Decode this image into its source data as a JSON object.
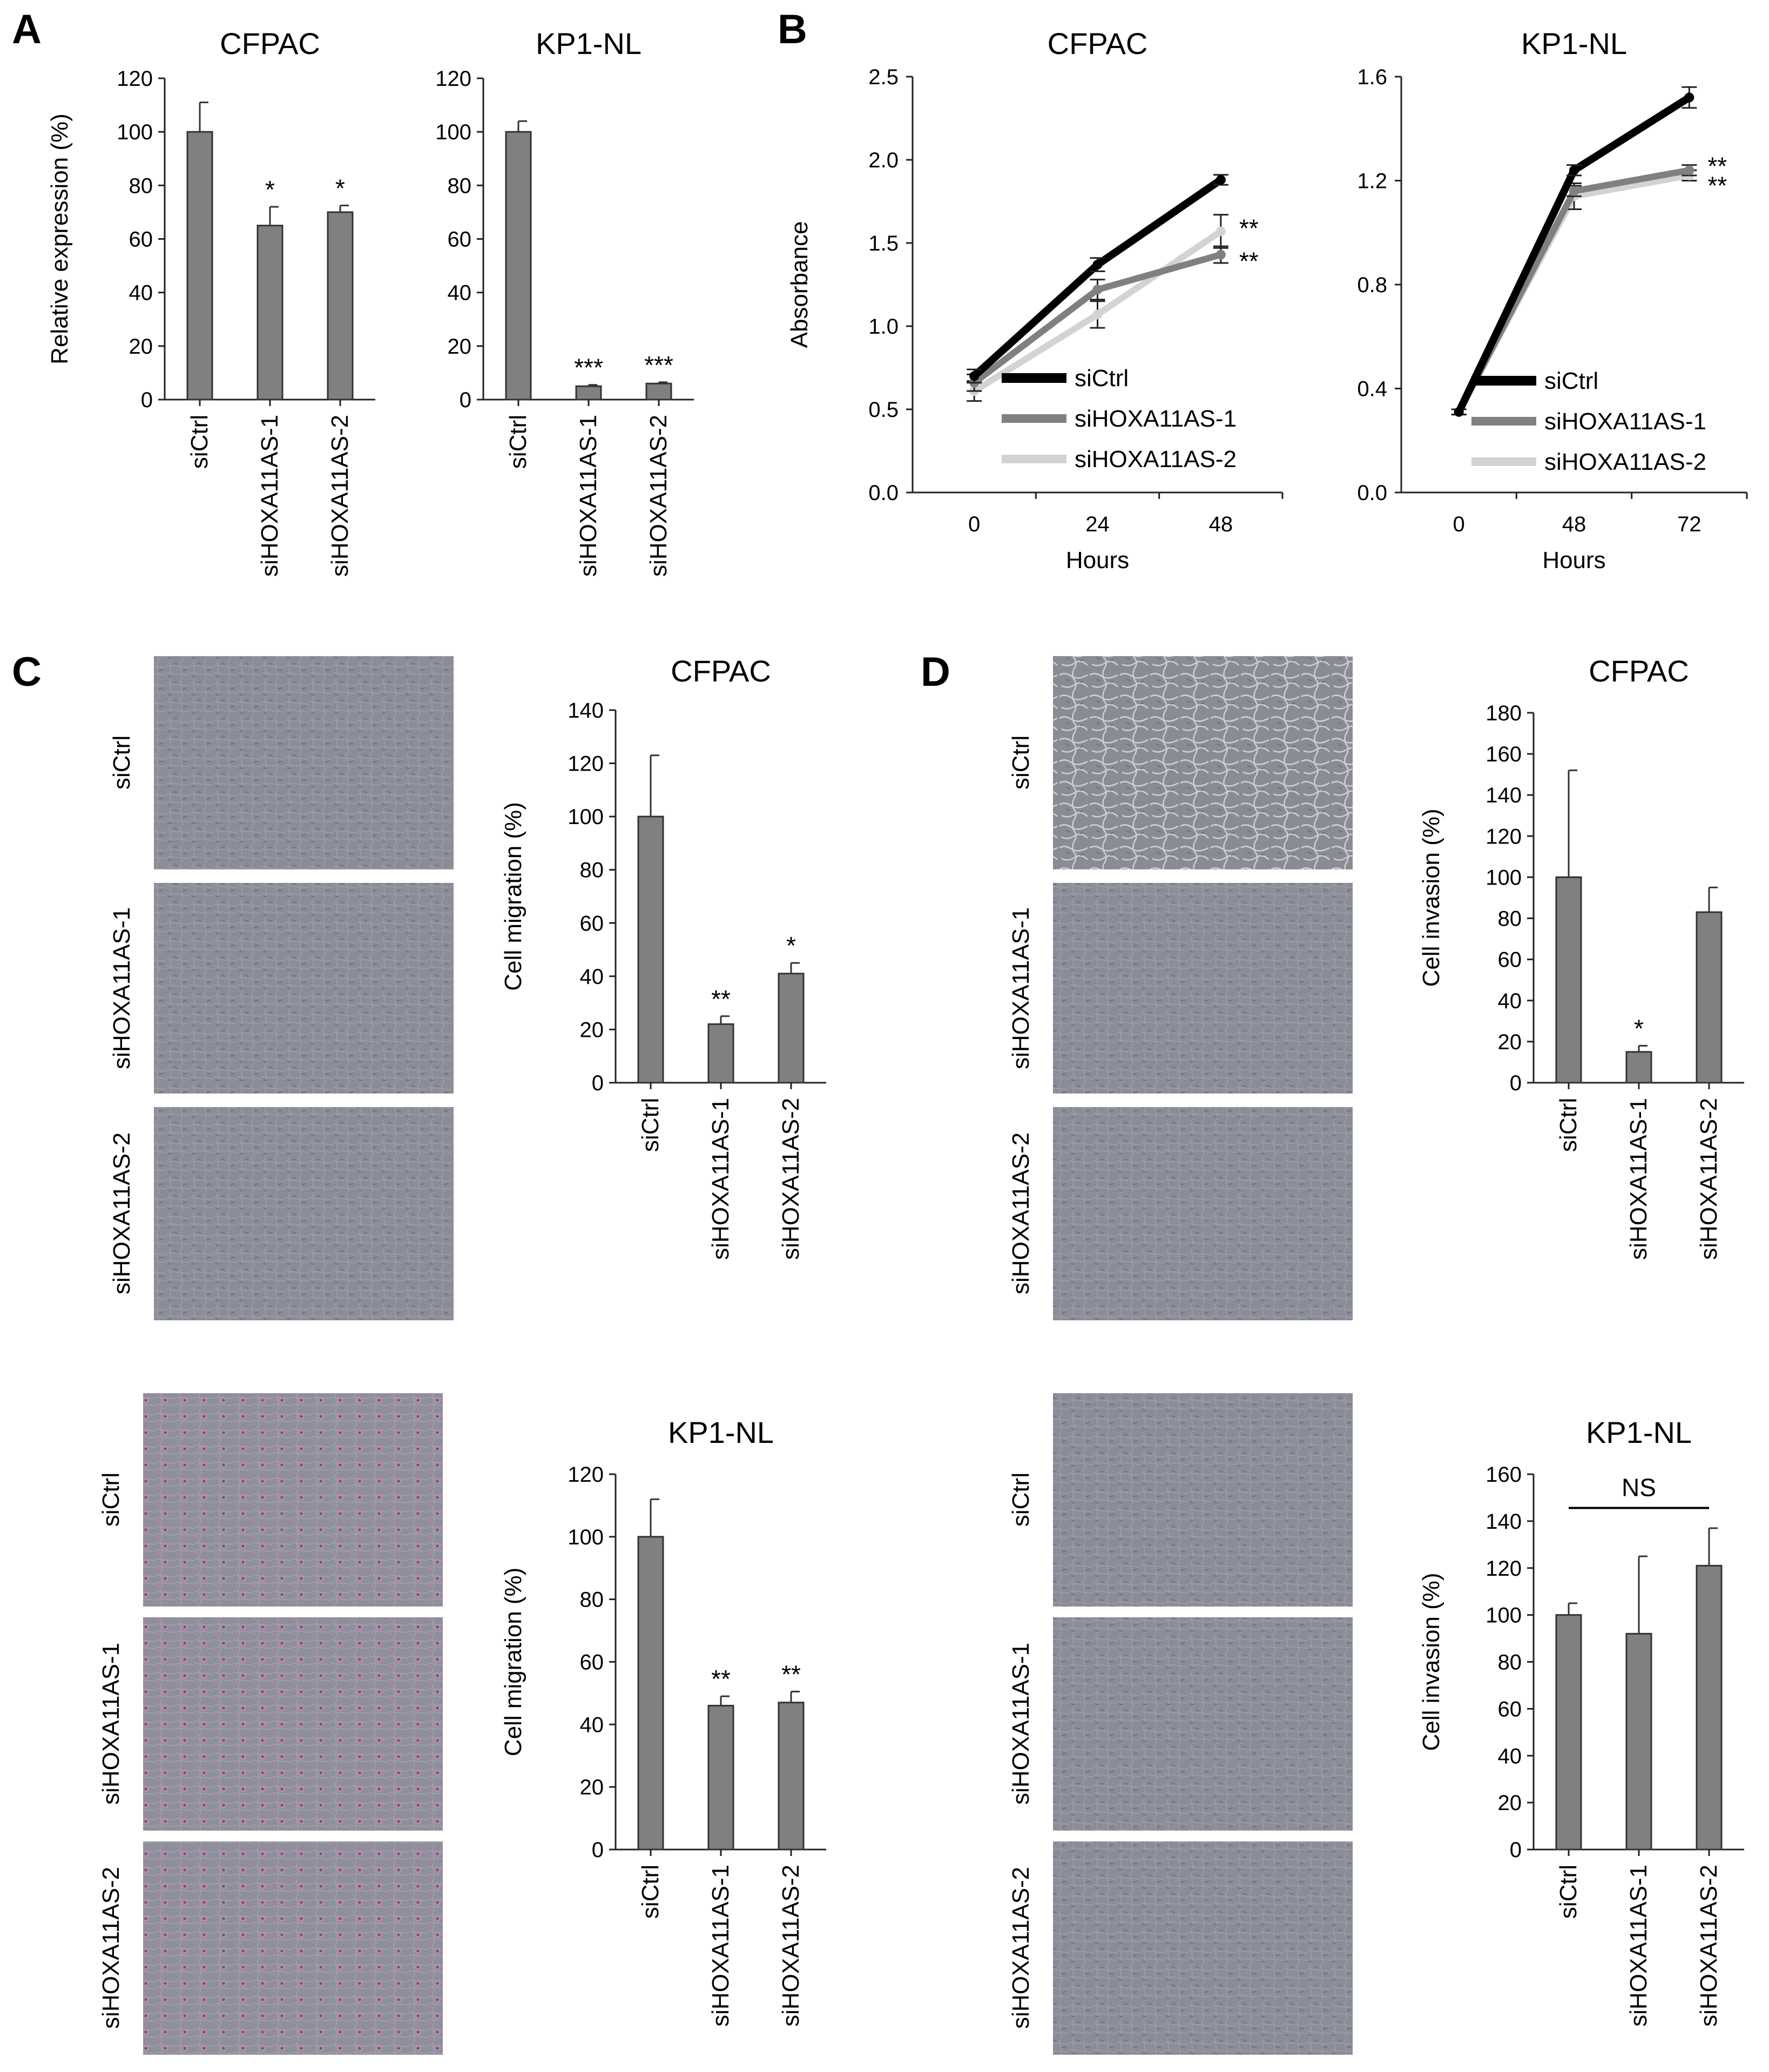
{
  "panel_labels": [
    "A",
    "B",
    "C",
    "D"
  ],
  "colors": {
    "bar": "#808080",
    "line_ctrl": "#000000",
    "line_as1": "#808080",
    "line_as2": "#d3d3d3",
    "photo_base": "#8c8f99",
    "cell_stain": "#b07aa8"
  },
  "photo_labels": [
    "siCtrl",
    "siHOXA11AS-1",
    "siHOXA11AS-2"
  ],
  "chart_data": [
    {
      "id": "a1",
      "type": "bar",
      "title": "CFPAC",
      "ylabel": "Relative expression (%)",
      "categories": [
        "siCtrl",
        "siHOXA11AS-1",
        "siHOXA11AS-2"
      ],
      "values": [
        100,
        65,
        70
      ],
      "errors": [
        11,
        7,
        2.5
      ],
      "significance": [
        "",
        "*",
        "*"
      ],
      "ylim": [
        0,
        120
      ],
      "yticks": [
        "0",
        "20",
        "40",
        "60",
        "80",
        "100",
        "120"
      ]
    },
    {
      "id": "a2",
      "type": "bar",
      "title": "KP1-NL",
      "ylabel": "",
      "categories": [
        "siCtrl",
        "siHOXA11AS-1",
        "siHOXA11AS-2"
      ],
      "values": [
        100,
        5,
        6
      ],
      "errors": [
        4,
        0.5,
        0.5
      ],
      "significance": [
        "",
        "***",
        "***"
      ],
      "ylim": [
        0,
        120
      ],
      "yticks": [
        "0",
        "20",
        "40",
        "60",
        "80",
        "100",
        "120"
      ]
    },
    {
      "id": "b1",
      "type": "line",
      "title": "CFPAC",
      "xlabel": "Hours",
      "ylabel": "Absorbance",
      "x": [
        "0",
        "24",
        "48"
      ],
      "ylim": [
        0,
        2.5
      ],
      "yticks": [
        "0.0",
        "0.5",
        "1.0",
        "1.5",
        "2.0",
        "2.5"
      ],
      "series": [
        {
          "name": "siCtrl",
          "values": [
            0.7,
            1.37,
            1.88
          ],
          "errors": [
            0.04,
            0.04,
            0.03
          ]
        },
        {
          "name": "siHOXA11AS-1",
          "values": [
            0.66,
            1.22,
            1.43
          ],
          "errors": [
            0.05,
            0.06,
            0.05
          ]
        },
        {
          "name": "siHOXA11AS-2",
          "values": [
            0.61,
            1.07,
            1.57
          ],
          "errors": [
            0.06,
            0.08,
            0.1
          ]
        }
      ],
      "significance": [
        "**",
        "**"
      ]
    },
    {
      "id": "b2",
      "type": "line",
      "title": "KP1-NL",
      "xlabel": "Hours",
      "ylabel": "",
      "x": [
        "0",
        "48",
        "72"
      ],
      "ylim": [
        0,
        1.6
      ],
      "yticks": [
        "0.0",
        "0.4",
        "0.8",
        "1.2",
        "1.6"
      ],
      "series": [
        {
          "name": "siCtrl",
          "values": [
            0.31,
            1.24,
            1.52
          ],
          "errors": [
            0.01,
            0.02,
            0.04
          ]
        },
        {
          "name": "siHOXA11AS-1",
          "values": [
            0.31,
            1.16,
            1.24
          ],
          "errors": [
            0.01,
            0.02,
            0.02
          ]
        },
        {
          "name": "siHOXA11AS-2",
          "values": [
            0.31,
            1.14,
            1.22
          ],
          "errors": [
            0.01,
            0.05,
            0.02
          ]
        }
      ],
      "significance": [
        "**",
        "**"
      ]
    },
    {
      "id": "c1",
      "type": "bar",
      "title": "CFPAC",
      "ylabel": "Cell migration (%)",
      "categories": [
        "siCtrl",
        "siHOXA11AS-1",
        "siHOXA11AS-2"
      ],
      "values": [
        100,
        22,
        41
      ],
      "errors": [
        23,
        3,
        4
      ],
      "significance": [
        "",
        "**",
        "*"
      ],
      "ylim": [
        0,
        140
      ],
      "yticks": [
        "0",
        "20",
        "40",
        "60",
        "80",
        "100",
        "120",
        "140"
      ]
    },
    {
      "id": "c2",
      "type": "bar",
      "title": "KP1-NL",
      "ylabel": "Cell migration (%)",
      "categories": [
        "siCtrl",
        "siHOXA11AS-1",
        "siHOXA11AS-2"
      ],
      "values": [
        100,
        46,
        47
      ],
      "errors": [
        12,
        3,
        3.5
      ],
      "significance": [
        "",
        "**",
        "**"
      ],
      "ylim": [
        0,
        120
      ],
      "yticks": [
        "0",
        "20",
        "40",
        "60",
        "80",
        "100",
        "120"
      ]
    },
    {
      "id": "d1",
      "type": "bar",
      "title": "CFPAC",
      "ylabel": "Cell invasion (%)",
      "categories": [
        "siCtrl",
        "siHOXA11AS-1",
        "siHOXA11AS-2"
      ],
      "values": [
        100,
        15,
        83
      ],
      "errors": [
        52,
        3,
        12
      ],
      "significance": [
        "",
        "*",
        ""
      ],
      "ylim": [
        0,
        180
      ],
      "yticks": [
        "0",
        "20",
        "40",
        "60",
        "80",
        "100",
        "120",
        "140",
        "160",
        "180"
      ]
    },
    {
      "id": "d2",
      "type": "bar",
      "title": "KP1-NL",
      "ylabel": "Cell invasion (%)",
      "categories": [
        "siCtrl",
        "siHOXA11AS-1",
        "siHOXA11AS-2"
      ],
      "values": [
        100,
        92,
        121
      ],
      "errors": [
        5,
        33,
        16
      ],
      "significance": [
        "",
        "",
        ""
      ],
      "bracket_label": "NS",
      "ylim": [
        0,
        160
      ],
      "yticks": [
        "0",
        "20",
        "40",
        "60",
        "80",
        "100",
        "120",
        "140",
        "160"
      ]
    }
  ]
}
